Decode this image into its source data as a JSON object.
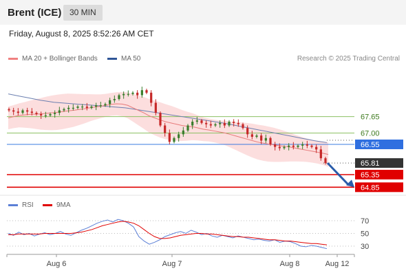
{
  "header": {
    "instrument": "Brent (ICE)",
    "timeframe": "30 MIN"
  },
  "datetime": "Friday, August 8, 2025 8:52:26 AM CET",
  "legend": {
    "ma20": {
      "label": "MA 20 + Bollinger Bands",
      "color": "#f08080"
    },
    "ma50": {
      "label": "MA 50",
      "color": "#2f5597"
    },
    "credit": "Research © 2025 Trading Central"
  },
  "rsi_legend": {
    "rsi": {
      "label": "RSI",
      "color": "#5b7fd6"
    },
    "ma9": {
      "label": "9MA",
      "color": "#e00000"
    }
  },
  "chart_data": [
    {
      "type": "line",
      "title": "",
      "x_ticks": [
        "Aug 6",
        "Aug 7",
        "Aug 8",
        "Aug 12"
      ],
      "ylim": [
        64.5,
        69.0
      ],
      "grid": false,
      "levels": [
        {
          "label": "67.65",
          "value": 67.65,
          "style": "resistance",
          "color": "#8cc063"
        },
        {
          "label": "67.00",
          "value": 67.0,
          "style": "resistance",
          "color": "#8cc063"
        },
        {
          "label": "66.55",
          "value": 66.55,
          "style": "pivot",
          "color": "#3a7be0"
        },
        {
          "label": "65.81",
          "value": 65.81,
          "style": "last-price",
          "color": "#333333"
        },
        {
          "label": "65.35",
          "value": 65.35,
          "style": "support",
          "color": "#e00000"
        },
        {
          "label": "64.85",
          "value": 64.85,
          "style": "support",
          "color": "#e00000"
        }
      ],
      "close": [
        67.9,
        67.85,
        67.8,
        67.9,
        67.85,
        67.8,
        67.75,
        67.7,
        67.7,
        67.75,
        67.8,
        67.9,
        67.95,
        68.0,
        68.0,
        68.05,
        68.05,
        68.0,
        68.05,
        68.1,
        68.1,
        68.15,
        68.3,
        68.35,
        68.5,
        68.55,
        68.55,
        68.6,
        68.5,
        68.7,
        68.6,
        68.2,
        67.8,
        67.3,
        67.0,
        66.65,
        66.8,
        66.95,
        67.1,
        67.3,
        67.45,
        67.5,
        67.4,
        67.35,
        67.3,
        67.35,
        67.4,
        67.3,
        67.45,
        67.4,
        67.35,
        67.2,
        66.95,
        66.85,
        66.9,
        66.7,
        66.8,
        66.55,
        66.45,
        66.4,
        66.45,
        66.5,
        66.45,
        66.5,
        66.55,
        66.5,
        66.45,
        66.35,
        66.0,
        65.81
      ],
      "series": [
        {
          "name": "MA 20",
          "values": [
            67.6,
            67.65,
            67.7,
            67.72,
            67.74,
            67.75,
            67.76,
            67.78,
            67.8,
            67.82,
            67.85,
            67.88,
            67.9,
            67.93,
            67.96,
            68.0,
            68.03,
            68.06,
            68.1,
            68.14,
            68.16,
            68.15,
            68.1,
            68.0,
            67.9,
            67.8,
            67.68,
            67.6,
            67.52,
            67.45,
            67.4,
            67.35,
            67.3,
            67.27,
            67.25,
            67.2,
            67.15,
            67.12,
            67.08,
            67.04,
            67.0,
            66.94,
            66.88,
            66.82,
            66.76,
            66.7,
            66.64,
            66.6,
            66.56,
            66.53,
            66.5,
            66.47,
            66.44,
            66.4,
            66.36,
            66.32,
            66.28,
            66.24,
            66.2,
            66.15
          ]
        },
        {
          "name": "MA 50",
          "values": [
            68.55,
            68.5,
            68.45,
            68.4,
            68.35,
            68.3,
            68.26,
            68.22,
            68.2,
            68.18,
            68.16,
            68.14,
            68.12,
            68.1,
            68.08,
            68.06,
            68.04,
            68.02,
            68.0,
            67.96,
            67.92,
            67.88,
            67.84,
            67.8,
            67.76,
            67.72,
            67.68,
            67.64,
            67.6,
            67.56,
            67.52,
            67.48,
            67.44,
            67.4,
            67.35,
            67.3,
            67.25,
            67.2,
            67.15,
            67.1,
            67.05,
            67.0,
            66.95,
            66.9,
            66.85,
            66.8,
            66.75,
            66.7,
            66.66,
            66.62
          ]
        }
      ]
    },
    {
      "type": "line",
      "title": "",
      "ylim": [
        20,
        80
      ],
      "y_ticks": [
        "70",
        "50",
        "30"
      ],
      "series": [
        {
          "name": "RSI",
          "values": [
            50,
            47,
            52,
            48,
            50,
            46,
            49,
            51,
            48,
            50,
            53,
            49,
            47,
            51,
            55,
            58,
            62,
            66,
            69,
            71,
            68,
            72,
            70,
            66,
            60,
            45,
            38,
            33,
            36,
            40,
            45,
            48,
            51,
            53,
            50,
            55,
            52,
            48,
            50,
            46,
            44,
            47,
            45,
            43,
            46,
            44,
            42,
            40,
            41,
            39,
            38,
            40,
            36,
            38,
            37,
            34,
            30,
            29,
            31,
            30,
            28,
            26
          ]
        },
        {
          "name": "9MA",
          "values": [
            48,
            48,
            49,
            49,
            49,
            49,
            49,
            50,
            50,
            50,
            50,
            50,
            50,
            51,
            52,
            54,
            56,
            59,
            62,
            64,
            66,
            68,
            69,
            68,
            66,
            62,
            56,
            50,
            45,
            42,
            42,
            43,
            45,
            47,
            48,
            49,
            50,
            50,
            49,
            49,
            48,
            47,
            46,
            45,
            45,
            44,
            44,
            43,
            42,
            41,
            40,
            40,
            39,
            38,
            38,
            37,
            36,
            35,
            34,
            34,
            33,
            32
          ]
        }
      ]
    }
  ]
}
